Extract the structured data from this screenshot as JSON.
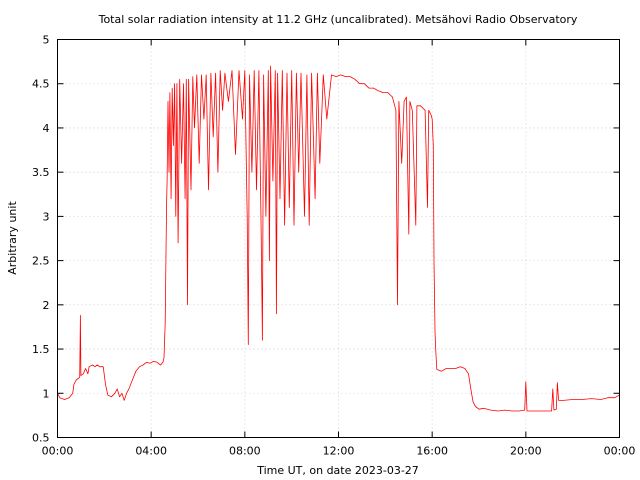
{
  "chart_data": {
    "type": "line",
    "title": "Total solar radiation intensity at 11.2 GHz (uncalibrated). Metsähovi Radio Observatory",
    "xlabel": "Time UT, on date 2023-03-27",
    "ylabel": "Arbitrary unit",
    "xlim": [
      0,
      24
    ],
    "ylim": [
      0.5,
      5
    ],
    "x_ticks": [
      {
        "value": 0,
        "label": "00:00"
      },
      {
        "value": 4,
        "label": "04:00"
      },
      {
        "value": 8,
        "label": "08:00"
      },
      {
        "value": 12,
        "label": "12:00"
      },
      {
        "value": 16,
        "label": "16:00"
      },
      {
        "value": 20,
        "label": "20:00"
      },
      {
        "value": 24,
        "label": "00:00"
      }
    ],
    "y_ticks": [
      {
        "value": 0.5,
        "label": "0.5"
      },
      {
        "value": 1,
        "label": "1"
      },
      {
        "value": 1.5,
        "label": "1.5"
      },
      {
        "value": 2,
        "label": "2"
      },
      {
        "value": 2.5,
        "label": "2.5"
      },
      {
        "value": 3,
        "label": "3"
      },
      {
        "value": 3.5,
        "label": "3.5"
      },
      {
        "value": 4,
        "label": "4"
      },
      {
        "value": 4.5,
        "label": "4.5"
      },
      {
        "value": 5,
        "label": "5"
      }
    ],
    "grid": true,
    "series_color": "#ff0000",
    "series": [
      {
        "points": [
          [
            0.0,
            1.0
          ],
          [
            0.1,
            0.95
          ],
          [
            0.3,
            0.93
          ],
          [
            0.5,
            0.95
          ],
          [
            0.65,
            1.0
          ],
          [
            0.7,
            1.1
          ],
          [
            0.8,
            1.15
          ],
          [
            0.9,
            1.17
          ],
          [
            0.95,
            1.18
          ],
          [
            0.98,
            1.88
          ],
          [
            1.0,
            1.2
          ],
          [
            1.1,
            1.22
          ],
          [
            1.2,
            1.28
          ],
          [
            1.3,
            1.22
          ],
          [
            1.35,
            1.3
          ],
          [
            1.5,
            1.32
          ],
          [
            1.6,
            1.3
          ],
          [
            1.7,
            1.32
          ],
          [
            1.8,
            1.3
          ],
          [
            1.95,
            1.3
          ],
          [
            2.05,
            1.1
          ],
          [
            2.15,
            0.98
          ],
          [
            2.3,
            0.96
          ],
          [
            2.45,
            1.0
          ],
          [
            2.55,
            1.05
          ],
          [
            2.65,
            0.96
          ],
          [
            2.75,
            1.0
          ],
          [
            2.85,
            0.92
          ],
          [
            2.95,
            1.0
          ],
          [
            3.05,
            1.05
          ],
          [
            3.2,
            1.15
          ],
          [
            3.35,
            1.25
          ],
          [
            3.5,
            1.3
          ],
          [
            3.65,
            1.32
          ],
          [
            3.8,
            1.35
          ],
          [
            3.95,
            1.34
          ],
          [
            4.1,
            1.36
          ],
          [
            4.25,
            1.35
          ],
          [
            4.4,
            1.32
          ],
          [
            4.5,
            1.35
          ],
          [
            4.55,
            1.4
          ],
          [
            4.6,
            1.8
          ],
          [
            4.63,
            2.5
          ],
          [
            4.66,
            3.15
          ],
          [
            4.68,
            3.4
          ],
          [
            4.72,
            4.3
          ],
          [
            4.76,
            3.5
          ],
          [
            4.8,
            4.4
          ],
          [
            4.85,
            3.2
          ],
          [
            4.9,
            4.45
          ],
          [
            4.95,
            3.8
          ],
          [
            5.0,
            4.5
          ],
          [
            5.05,
            3.0
          ],
          [
            5.1,
            4.5
          ],
          [
            5.15,
            2.7
          ],
          [
            5.22,
            4.55
          ],
          [
            5.3,
            3.6
          ],
          [
            5.38,
            4.5
          ],
          [
            5.45,
            3.2
          ],
          [
            5.5,
            4.55
          ],
          [
            5.55,
            2.0
          ],
          [
            5.6,
            4.55
          ],
          [
            5.7,
            3.3
          ],
          [
            5.78,
            4.58
          ],
          [
            5.85,
            4.0
          ],
          [
            5.95,
            4.6
          ],
          [
            6.05,
            3.6
          ],
          [
            6.15,
            4.6
          ],
          [
            6.25,
            4.1
          ],
          [
            6.35,
            4.6
          ],
          [
            6.45,
            3.3
          ],
          [
            6.55,
            4.62
          ],
          [
            6.65,
            3.9
          ],
          [
            6.75,
            4.62
          ],
          [
            6.85,
            3.5
          ],
          [
            6.95,
            4.65
          ],
          [
            7.05,
            4.2
          ],
          [
            7.15,
            4.62
          ],
          [
            7.3,
            4.3
          ],
          [
            7.45,
            4.65
          ],
          [
            7.6,
            3.7
          ],
          [
            7.75,
            4.65
          ],
          [
            7.9,
            4.1
          ],
          [
            8.0,
            4.65
          ],
          [
            8.1,
            3.0
          ],
          [
            8.15,
            1.55
          ],
          [
            8.2,
            4.6
          ],
          [
            8.3,
            3.5
          ],
          [
            8.4,
            4.65
          ],
          [
            8.5,
            3.3
          ],
          [
            8.6,
            4.65
          ],
          [
            8.7,
            2.8
          ],
          [
            8.75,
            1.6
          ],
          [
            8.8,
            4.6
          ],
          [
            8.9,
            3.0
          ],
          [
            9.0,
            4.65
          ],
          [
            9.05,
            2.5
          ],
          [
            9.1,
            4.7
          ],
          [
            9.2,
            3.4
          ],
          [
            9.3,
            4.65
          ],
          [
            9.35,
            1.9
          ],
          [
            9.4,
            4.62
          ],
          [
            9.5,
            3.2
          ],
          [
            9.6,
            4.65
          ],
          [
            9.7,
            2.9
          ],
          [
            9.8,
            4.62
          ],
          [
            9.9,
            3.1
          ],
          [
            10.0,
            4.65
          ],
          [
            10.1,
            2.9
          ],
          [
            10.2,
            4.62
          ],
          [
            10.3,
            3.5
          ],
          [
            10.4,
            4.62
          ],
          [
            10.55,
            3.0
          ],
          [
            10.65,
            4.6
          ],
          [
            10.75,
            2.9
          ],
          [
            10.85,
            4.62
          ],
          [
            11.0,
            3.2
          ],
          [
            11.1,
            4.62
          ],
          [
            11.2,
            3.6
          ],
          [
            11.35,
            4.6
          ],
          [
            11.5,
            4.1
          ],
          [
            11.7,
            4.6
          ],
          [
            11.9,
            4.58
          ],
          [
            12.1,
            4.6
          ],
          [
            12.3,
            4.58
          ],
          [
            12.5,
            4.58
          ],
          [
            12.7,
            4.55
          ],
          [
            12.9,
            4.5
          ],
          [
            13.1,
            4.5
          ],
          [
            13.3,
            4.45
          ],
          [
            13.5,
            4.45
          ],
          [
            13.7,
            4.42
          ],
          [
            13.9,
            4.4
          ],
          [
            14.1,
            4.4
          ],
          [
            14.3,
            4.35
          ],
          [
            14.45,
            4.2
          ],
          [
            14.52,
            2.0
          ],
          [
            14.58,
            4.3
          ],
          [
            14.7,
            3.6
          ],
          [
            14.8,
            4.3
          ],
          [
            14.9,
            4.35
          ],
          [
            15.0,
            2.8
          ],
          [
            15.05,
            4.3
          ],
          [
            15.15,
            4.2
          ],
          [
            15.3,
            2.9
          ],
          [
            15.35,
            4.25
          ],
          [
            15.5,
            4.25
          ],
          [
            15.7,
            4.2
          ],
          [
            15.8,
            3.1
          ],
          [
            15.85,
            4.2
          ],
          [
            15.95,
            4.15
          ],
          [
            16.0,
            4.1
          ],
          [
            16.05,
            3.8
          ],
          [
            16.08,
            2.5
          ],
          [
            16.12,
            1.7
          ],
          [
            16.15,
            1.5
          ],
          [
            16.2,
            1.27
          ],
          [
            16.4,
            1.25
          ],
          [
            16.6,
            1.28
          ],
          [
            16.8,
            1.28
          ],
          [
            17.0,
            1.28
          ],
          [
            17.2,
            1.3
          ],
          [
            17.4,
            1.28
          ],
          [
            17.55,
            1.22
          ],
          [
            17.65,
            1.05
          ],
          [
            17.75,
            0.9
          ],
          [
            17.85,
            0.85
          ],
          [
            18.0,
            0.82
          ],
          [
            18.2,
            0.83
          ],
          [
            18.5,
            0.81
          ],
          [
            18.8,
            0.8
          ],
          [
            19.1,
            0.81
          ],
          [
            19.4,
            0.8
          ],
          [
            19.7,
            0.8
          ],
          [
            19.95,
            0.81
          ],
          [
            20.0,
            1.13
          ],
          [
            20.05,
            0.8
          ],
          [
            20.3,
            0.8
          ],
          [
            20.6,
            0.8
          ],
          [
            20.9,
            0.8
          ],
          [
            21.1,
            0.8
          ],
          [
            21.15,
            1.05
          ],
          [
            21.2,
            0.81
          ],
          [
            21.3,
            0.82
          ],
          [
            21.35,
            1.12
          ],
          [
            21.4,
            0.92
          ],
          [
            21.6,
            0.92
          ],
          [
            22.0,
            0.93
          ],
          [
            22.4,
            0.93
          ],
          [
            22.8,
            0.94
          ],
          [
            23.2,
            0.93
          ],
          [
            23.5,
            0.95
          ],
          [
            23.8,
            0.95
          ],
          [
            24.0,
            0.98
          ]
        ]
      }
    ]
  }
}
